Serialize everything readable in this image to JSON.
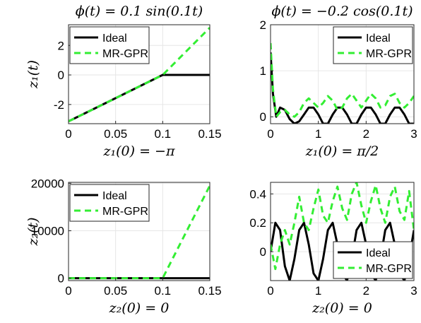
{
  "colors": {
    "ideal": "#000000",
    "mrgpr": "#33ee33",
    "grid": "#e6e6e6",
    "axis": "#262626"
  },
  "chart_data": [
    {
      "type": "line",
      "title": "ϕ(t) = 0.1 sin(0.1t)",
      "xlabel": "z₁(0) = −π",
      "ylabel": "z₁(t)",
      "xlim": [
        0,
        0.15
      ],
      "ylim": [
        -3.3,
        3.4
      ],
      "xticks": [
        0,
        0.05,
        0.1,
        0.15
      ],
      "xtick_labels": [
        "0",
        "0.05",
        "0.1",
        "0.15"
      ],
      "yticks": [
        -2,
        0,
        2
      ],
      "ytick_labels": [
        "-2",
        "0",
        "2"
      ],
      "grid": true,
      "legend_position": "top-left",
      "series": [
        {
          "name": "Ideal",
          "style": "solid",
          "x": [
            0,
            0.1,
            0.15
          ],
          "y": [
            -3.14,
            0,
            0
          ]
        },
        {
          "name": "MR-GPR",
          "style": "dashed",
          "x": [
            0,
            0.1,
            0.15
          ],
          "y": [
            -3.14,
            0,
            3.2
          ]
        }
      ]
    },
    {
      "type": "line",
      "title": "ϕ(t) = −0.2 cos(0.1t)",
      "xlabel": "z₁(0) = π/2",
      "ylabel": "",
      "xlim": [
        0,
        3
      ],
      "ylim": [
        -0.15,
        2
      ],
      "xticks": [
        0,
        1,
        2,
        3
      ],
      "xtick_labels": [
        "0",
        "1",
        "2",
        "3"
      ],
      "yticks": [
        0,
        1,
        2
      ],
      "ytick_labels": [
        "0",
        "1",
        "2"
      ],
      "grid": true,
      "legend_position": "top-right",
      "series": [
        {
          "name": "Ideal",
          "style": "solid",
          "x": [
            0,
            0.05,
            0.12,
            0.2,
            0.3,
            0.4,
            0.5,
            0.6,
            0.7,
            0.8,
            0.9,
            1.0,
            1.1,
            1.2,
            1.3,
            1.4,
            1.5,
            1.6,
            1.7,
            1.8,
            1.9,
            2.0,
            2.1,
            2.2,
            2.3,
            2.4,
            2.5,
            2.6,
            2.7,
            2.8,
            2.9,
            3.0
          ],
          "y": [
            1.4,
            0.5,
            0.0,
            0.2,
            0.15,
            -0.05,
            -0.15,
            -0.1,
            0.05,
            0.2,
            0.2,
            0.05,
            -0.15,
            -0.15,
            0.05,
            0.2,
            0.2,
            0.05,
            -0.15,
            -0.15,
            0.05,
            0.2,
            0.2,
            0.05,
            -0.15,
            -0.15,
            0.05,
            0.2,
            0.2,
            0.05,
            -0.15,
            -0.15
          ]
        },
        {
          "name": "MR-GPR",
          "style": "dashed",
          "x": [
            0,
            0.05,
            0.12,
            0.2,
            0.3,
            0.4,
            0.5,
            0.6,
            0.7,
            0.8,
            0.9,
            1.0,
            1.1,
            1.2,
            1.3,
            1.4,
            1.5,
            1.6,
            1.7,
            1.8,
            1.9,
            2.0,
            2.1,
            2.2,
            2.3,
            2.4,
            2.5,
            2.6,
            2.7,
            2.8,
            2.9,
            3.0
          ],
          "y": [
            1.6,
            0.6,
            0.0,
            0.1,
            0.15,
            0.05,
            0.0,
            0.1,
            0.3,
            0.4,
            0.3,
            0.2,
            0.3,
            0.45,
            0.35,
            0.15,
            0.2,
            0.4,
            0.5,
            0.35,
            0.2,
            0.35,
            0.5,
            0.4,
            0.2,
            0.25,
            0.45,
            0.5,
            0.3,
            0.2,
            0.3,
            0.45
          ]
        }
      ]
    },
    {
      "type": "line",
      "title": "",
      "xlabel": "z₂(0) = 0",
      "ylabel": "z₂(t)",
      "xlim": [
        0,
        0.15
      ],
      "ylim": [
        -500,
        20200
      ],
      "xticks": [
        0,
        0.05,
        0.1,
        0.15
      ],
      "xtick_labels": [
        "0",
        "0.05",
        "0.1",
        "0.15"
      ],
      "yticks": [
        0,
        10000,
        20000
      ],
      "ytick_labels": [
        "0",
        "10000",
        "20000"
      ],
      "grid": true,
      "legend_position": "top-left",
      "series": [
        {
          "name": "Ideal",
          "style": "solid",
          "x": [
            0,
            0.1,
            0.15
          ],
          "y": [
            0,
            0,
            0
          ]
        },
        {
          "name": "MR-GPR",
          "style": "dashed",
          "x": [
            0,
            0.1,
            0.15
          ],
          "y": [
            0,
            0,
            19500
          ]
        }
      ]
    },
    {
      "type": "line",
      "title": "",
      "xlabel": "z₂(0) = 0",
      "ylabel": "",
      "xlim": [
        0,
        3
      ],
      "ylim": [
        -0.2,
        0.48
      ],
      "xticks": [
        0,
        1,
        2,
        3
      ],
      "xtick_labels": [
        "0",
        "1",
        "2",
        "3"
      ],
      "yticks": [
        0,
        0.2,
        0.4
      ],
      "ytick_labels": [
        "0",
        "0.2",
        "0.4"
      ],
      "grid": true,
      "legend_position": "bottom-right",
      "series": [
        {
          "name": "Ideal",
          "style": "solid",
          "x": [
            0,
            0.1,
            0.2,
            0.3,
            0.4,
            0.5,
            0.6,
            0.7,
            0.8,
            0.9,
            1.0,
            1.1,
            1.2,
            1.3,
            1.4,
            1.5,
            1.6,
            1.7,
            1.8,
            1.9,
            2.0,
            2.1,
            2.2,
            2.3,
            2.4,
            2.5,
            2.6,
            2.7,
            2.8,
            2.9,
            3.0
          ],
          "y": [
            0,
            0.2,
            0.15,
            -0.1,
            -0.2,
            -0.05,
            0.15,
            0.2,
            0.05,
            -0.15,
            -0.2,
            -0.05,
            0.15,
            0.2,
            0.05,
            -0.15,
            -0.2,
            -0.05,
            0.15,
            0.2,
            0.05,
            -0.15,
            -0.2,
            -0.05,
            0.15,
            0.2,
            0.05,
            -0.15,
            -0.2,
            -0.05,
            0.15
          ]
        },
        {
          "name": "MR-GPR",
          "style": "dashed",
          "x": [
            0,
            0.1,
            0.2,
            0.3,
            0.4,
            0.5,
            0.6,
            0.7,
            0.8,
            0.9,
            1.0,
            1.1,
            1.2,
            1.3,
            1.4,
            1.5,
            1.6,
            1.7,
            1.8,
            1.9,
            2.0,
            2.1,
            2.2,
            2.3,
            2.4,
            2.5,
            2.6,
            2.7,
            2.8,
            2.9,
            3.0
          ],
          "y": [
            0.05,
            -0.12,
            0.05,
            0.15,
            0.05,
            0.2,
            0.38,
            0.2,
            0.15,
            0.3,
            0.43,
            0.25,
            0.2,
            0.35,
            0.45,
            0.3,
            0.22,
            0.4,
            0.48,
            0.32,
            0.2,
            0.35,
            0.46,
            0.3,
            0.2,
            0.38,
            0.45,
            0.28,
            0.22,
            0.42,
            0.15
          ]
        }
      ]
    }
  ]
}
